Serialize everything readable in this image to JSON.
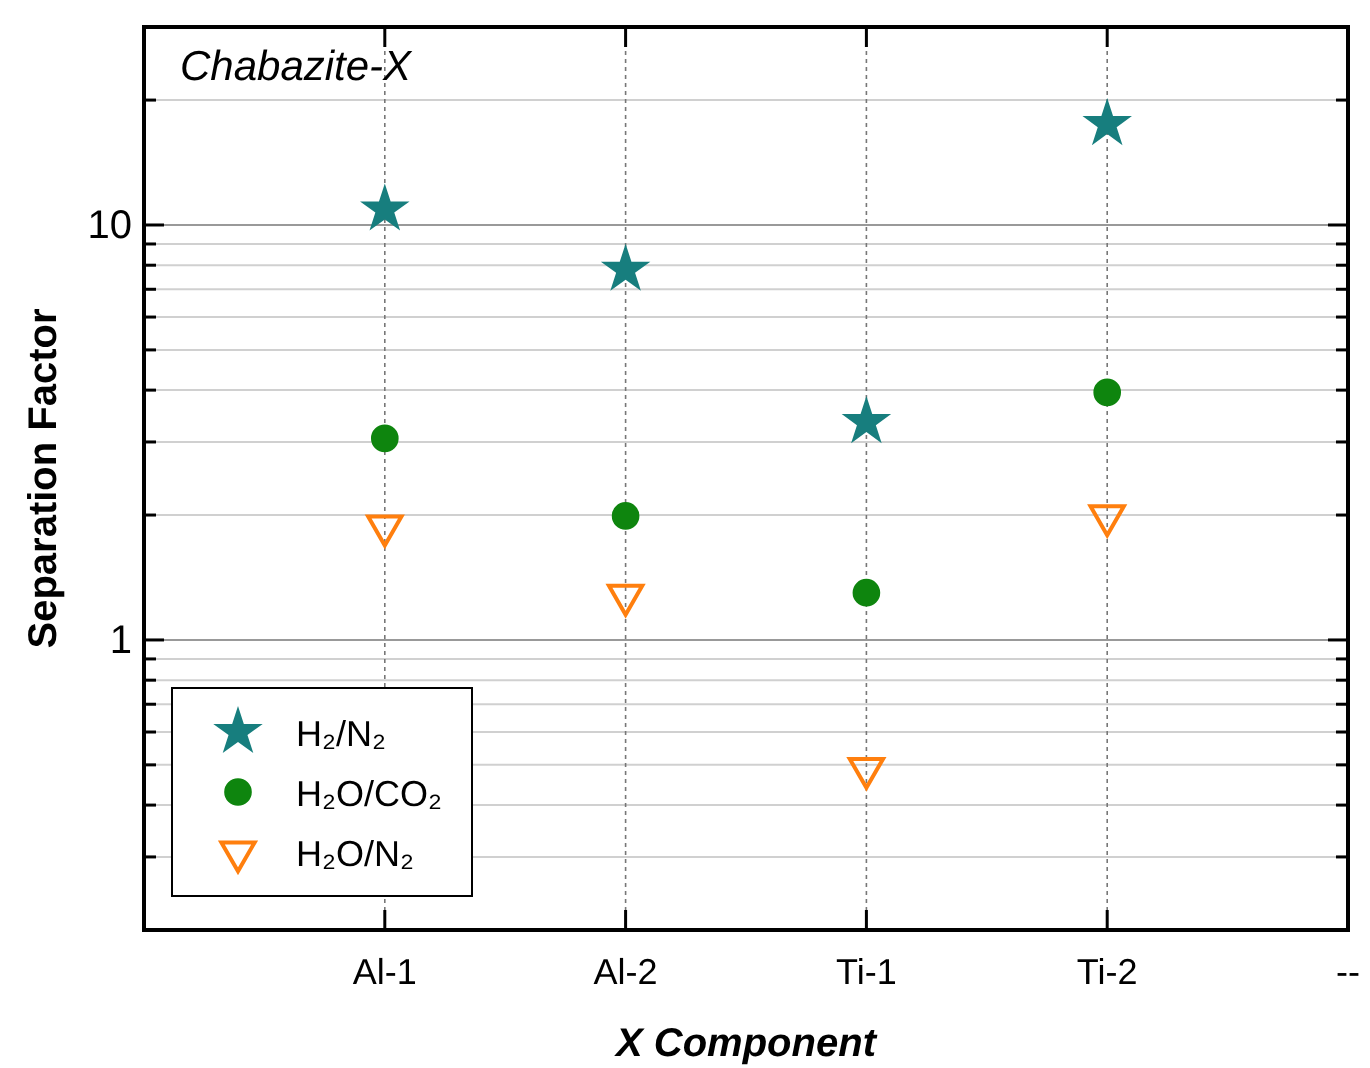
{
  "chart_data": {
    "type": "scatter",
    "title": "Chabazite-X",
    "xlabel": "X Component",
    "ylabel": "Separation Factor",
    "categories": [
      "Al-1",
      "Al-2",
      "Ti-1",
      "Ti-2",
      "--"
    ],
    "series": [
      {
        "name": "H₂/N₂",
        "color": "#177e7e",
        "marker": "star",
        "values": [
          10.9,
          7.8,
          3.35,
          17.5,
          null
        ]
      },
      {
        "name": "H₂O/CO₂",
        "color": "#0e850e",
        "marker": "circle",
        "values": [
          3.06,
          1.99,
          1.3,
          3.95,
          null
        ]
      },
      {
        "name": "H₂O/N₂",
        "color": "#ff7f0e",
        "marker": "triangle",
        "values": [
          1.88,
          1.28,
          0.49,
          1.99,
          null
        ]
      }
    ],
    "log": true,
    "ylim": [
      0.2,
      30
    ],
    "yticks": [
      {
        "value": 0.2,
        "label": null
      },
      {
        "value": 0.3,
        "label": null
      },
      {
        "value": 0.4,
        "label": null
      },
      {
        "value": 0.5,
        "label": null
      },
      {
        "value": 0.6,
        "label": null
      },
      {
        "value": 0.7,
        "label": null
      },
      {
        "value": 0.8,
        "label": null
      },
      {
        "value": 0.9,
        "label": null
      },
      1,
      {
        "value": 2,
        "label": null
      },
      {
        "value": 3,
        "label": null
      },
      {
        "value": 4,
        "label": null
      },
      {
        "value": 5,
        "label": null
      },
      {
        "value": 6,
        "label": null
      },
      {
        "value": 7,
        "label": null
      },
      {
        "value": 8,
        "label": null
      },
      {
        "value": 9,
        "label": null
      },
      10,
      {
        "value": 20,
        "label": null
      },
      {
        "value": 30,
        "label": null
      }
    ],
    "grid": true,
    "legend": "bottom left"
  }
}
